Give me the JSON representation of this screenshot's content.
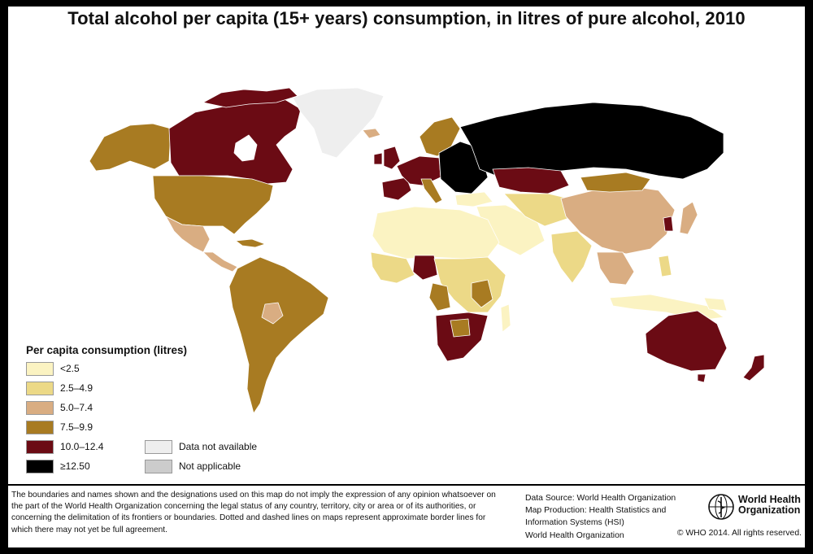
{
  "title": "Total alcohol per capita (15+ years) consumption, in litres of pure alcohol, 2010",
  "legend": {
    "title": "Per capita consumption (litres)",
    "classes": [
      {
        "label": "<2.5",
        "color": "#fbf3c2"
      },
      {
        "label": "2.5–4.9",
        "color": "#ecd987"
      },
      {
        "label": "5.0–7.4",
        "color": "#d9ad82"
      },
      {
        "label": "7.5–9.9",
        "color": "#a87b22"
      },
      {
        "label": "10.0–12.4",
        "color": "#6b0b14"
      },
      {
        "label": "≥12.50",
        "color": "#000000"
      }
    ],
    "other": [
      {
        "label": "Data not available",
        "color": "#eeeeee"
      },
      {
        "label": "Not applicable",
        "color": "#cccccc"
      }
    ]
  },
  "disclaimer": "The boundaries and names shown and the designations used on this map do not imply the expression of any opinion whatsoever on the part of the World Health Organization concerning the legal status of any country, territory, city or area or of its authorities, or concerning the delimitation of its frontiers or boundaries. Dotted and dashed lines on maps represent approximate border lines for which there may not yet be full agreement.",
  "source": {
    "line1": "Data Source: World Health Organization",
    "line2": "Map Production: Health Statistics and",
    "line3": "Information Systems (HSI)",
    "line4": "World Health Organization"
  },
  "logo": {
    "line1": "World Health",
    "line2": "Organization"
  },
  "copyright": "© WHO 2014. All rights reserved.",
  "regions": [
    {
      "name": "Canada",
      "class": 4
    },
    {
      "name": "Alaska",
      "class": 3
    },
    {
      "name": "Greenland",
      "class": "na"
    },
    {
      "name": "United States",
      "class": 3
    },
    {
      "name": "Mexico",
      "class": 2
    },
    {
      "name": "Central America",
      "class": 2
    },
    {
      "name": "South America",
      "class": 3
    },
    {
      "name": "Europe West",
      "class": 4
    },
    {
      "name": "Europe East",
      "class": 5
    },
    {
      "name": "Russia",
      "class": 5
    },
    {
      "name": "Kazakhstan",
      "class": 4
    },
    {
      "name": "China",
      "class": 2
    },
    {
      "name": "North Africa",
      "class": 0
    },
    {
      "name": "Nigeria",
      "class": 4
    },
    {
      "name": "Southern Africa",
      "class": 4
    },
    {
      "name": "Australia",
      "class": 4
    },
    {
      "name": "New Zealand",
      "class": 4
    }
  ]
}
